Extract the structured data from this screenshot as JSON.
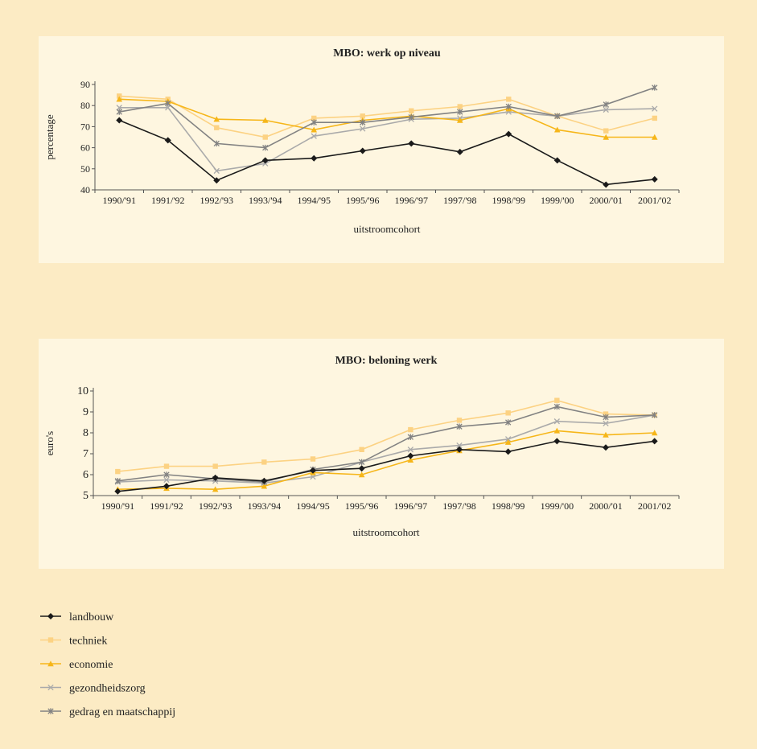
{
  "chart_data": [
    {
      "type": "line",
      "title": "MBO: werk op niveau",
      "xlabel": "uitstroomcohort",
      "ylabel": "percentage",
      "ylim": [
        40,
        90
      ],
      "yticks": [
        40,
        50,
        60,
        70,
        80,
        90
      ],
      "categories": [
        "1990/'91",
        "1991/'92",
        "1992/'93",
        "1993/'94",
        "1994/'95",
        "1995/'96",
        "1996/'97",
        "1997/'98",
        "1998/'99",
        "1999/'00",
        "2000/'01",
        "2001/'02"
      ],
      "series": [
        {
          "name": "landbouw",
          "values": [
            73,
            63.5,
            44.5,
            54,
            55,
            58.5,
            62,
            58,
            66.5,
            54,
            42.5,
            45
          ]
        },
        {
          "name": "techniek",
          "values": [
            84.5,
            83,
            69.5,
            65,
            74,
            75,
            77.5,
            79.5,
            83,
            75,
            68,
            74
          ]
        },
        {
          "name": "economie",
          "values": [
            83,
            82,
            73.5,
            73,
            68.5,
            73,
            75,
            73,
            78.5,
            68.5,
            65,
            65
          ]
        },
        {
          "name": "gezondheidszorg",
          "values": [
            79,
            79,
            49,
            52.5,
            65.5,
            69,
            73.5,
            74,
            77,
            75,
            78,
            78.5
          ]
        },
        {
          "name": "gedrag en maatschappij",
          "values": [
            77,
            81,
            62,
            60,
            72,
            72,
            74.5,
            77,
            79.5,
            75,
            80.5,
            88.5
          ]
        }
      ]
    },
    {
      "type": "line",
      "title": "MBO: beloning werk",
      "xlabel": "uitstroomcohort",
      "ylabel": "euro's",
      "ylim": [
        5,
        10
      ],
      "yticks": [
        5,
        6,
        7,
        8,
        9,
        10
      ],
      "categories": [
        "1990/'91",
        "1991/'92",
        "1992/'93",
        "1993/'94",
        "1994/'95",
        "1995/'96",
        "1996/'97",
        "1997/'98",
        "1998/'99",
        "1999/'00",
        "2000/'01",
        "2001/'02"
      ],
      "series": [
        {
          "name": "landbouw",
          "values": [
            5.2,
            5.45,
            5.85,
            5.7,
            6.2,
            6.3,
            6.9,
            7.2,
            7.1,
            7.6,
            7.3,
            7.6
          ]
        },
        {
          "name": "techniek",
          "values": [
            6.15,
            6.4,
            6.4,
            6.6,
            6.75,
            7.2,
            8.15,
            8.6,
            8.95,
            9.55,
            8.9,
            8.85
          ]
        },
        {
          "name": "economie",
          "values": [
            5.3,
            5.35,
            5.3,
            5.45,
            6.1,
            6.0,
            6.7,
            7.15,
            7.55,
            8.1,
            7.9,
            8.0
          ]
        },
        {
          "name": "gezondheidszorg",
          "values": [
            5.65,
            5.75,
            5.7,
            5.6,
            5.9,
            6.6,
            7.2,
            7.4,
            7.7,
            8.55,
            8.45,
            8.85
          ]
        },
        {
          "name": "gedrag en maatschappij",
          "values": [
            5.7,
            6.0,
            5.8,
            5.65,
            6.25,
            6.6,
            7.8,
            8.3,
            8.5,
            9.25,
            8.75,
            8.85
          ]
        }
      ]
    }
  ],
  "legend": {
    "placement": "bottom-left",
    "items": [
      {
        "label": "landbouw",
        "color": "#1a1a1a",
        "marker": "diamond"
      },
      {
        "label": "techniek",
        "color": "#fcd283",
        "marker": "square"
      },
      {
        "label": "economie",
        "color": "#f6b619",
        "marker": "triangle"
      },
      {
        "label": "gezondheidszorg",
        "color": "#aaaaaa",
        "marker": "x"
      },
      {
        "label": "gedrag en maatschappij",
        "color": "#828282",
        "marker": "star"
      }
    ]
  }
}
